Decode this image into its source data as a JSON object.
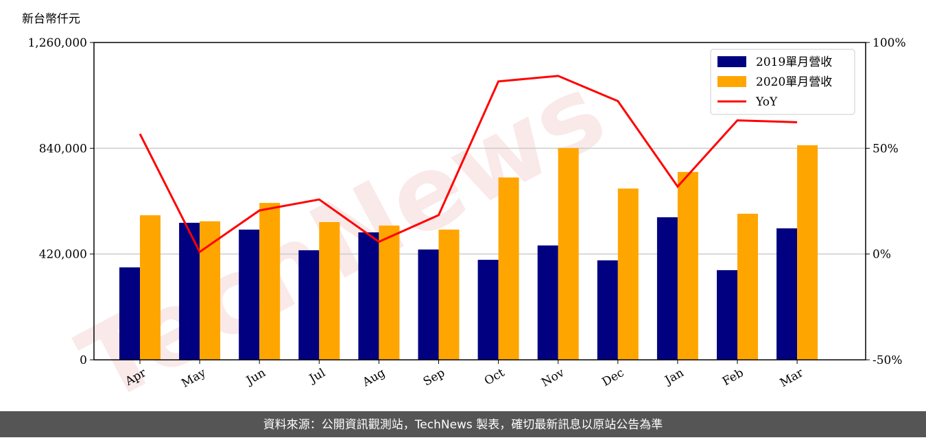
{
  "chart_data": {
    "type": "bar-line",
    "y_label": "新台幣仟元",
    "watermark": "TechNews",
    "footer": "資料來源：公開資訊觀測站，TechNews 製表，確切最新訊息以原站公告為準",
    "categories": [
      "Apr",
      "May",
      "Jun",
      "Jul",
      "Aug",
      "Sep",
      "Oct",
      "Nov",
      "Dec",
      "Jan",
      "Feb",
      "Mar"
    ],
    "series": [
      {
        "name": "2019單月營收",
        "color": "#000080",
        "values": [
          367000,
          544000,
          517000,
          435000,
          506000,
          438000,
          397000,
          454000,
          395000,
          566000,
          356000,
          522000
        ]
      },
      {
        "name": "2020單月營收",
        "color": "#ffa500",
        "values": [
          574000,
          550000,
          623000,
          547000,
          533000,
          517000,
          724000,
          841000,
          680000,
          746000,
          580000,
          852000
        ]
      },
      {
        "name": "YoY",
        "color": "#ff0000",
        "axis": "y2",
        "values": [
          56.8,
          1,
          20.6,
          25.8,
          5.8,
          18.4,
          81.6,
          84.2,
          72.3,
          31.9,
          63.2,
          62.3
        ]
      }
    ],
    "ylim": [
      0,
      1260000
    ],
    "yticks": [
      0,
      {
        "value": 420000,
        "label": "420,000"
      },
      {
        "value": 840000,
        "label": "840,000"
      },
      {
        "value": 1260000,
        "label": "1,260,000"
      }
    ],
    "y2lim": [
      -50,
      100
    ],
    "y2ticks": [
      {
        "value": -50,
        "label": "-50%"
      },
      {
        "value": 0,
        "label": "0%"
      },
      {
        "value": 50,
        "label": "50%"
      },
      {
        "value": 100,
        "label": "100%"
      }
    ],
    "grid": true,
    "legend": "upper right"
  }
}
